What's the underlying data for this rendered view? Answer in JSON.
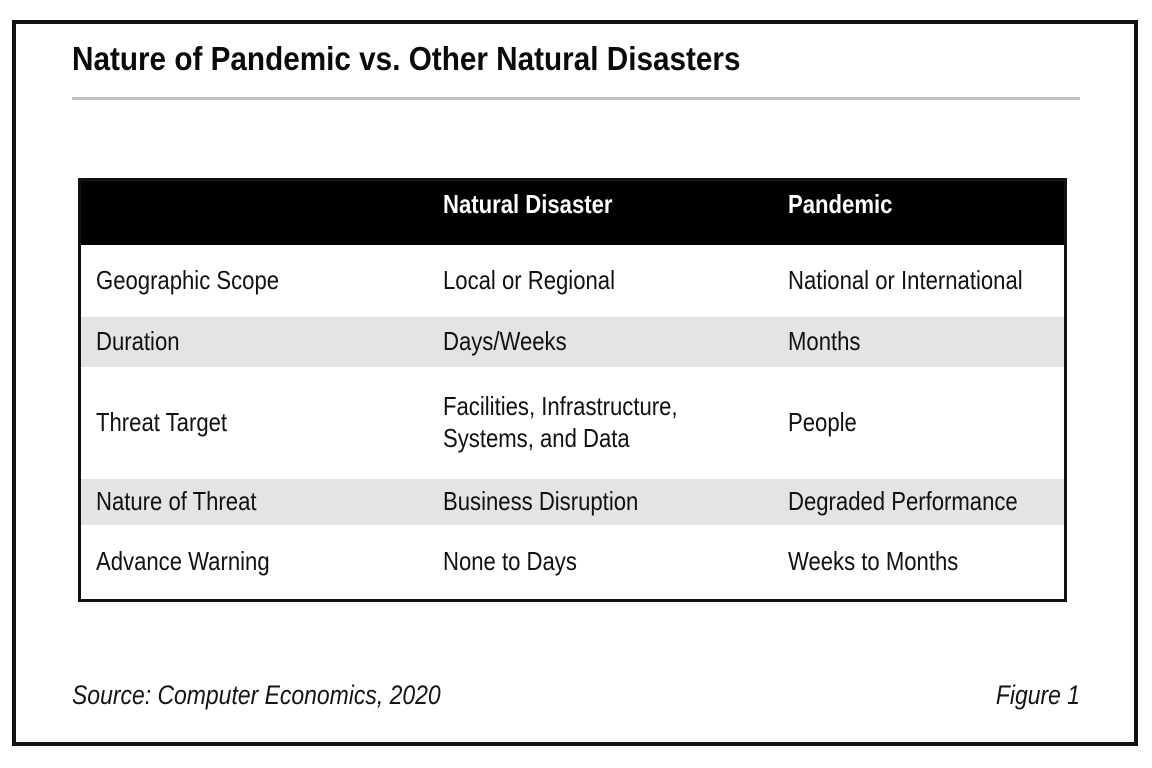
{
  "figure": {
    "title": "Nature of Pandemic vs. Other Natural Disasters",
    "source": "Source: Computer Economics, 2020",
    "figure_label": "Figure 1"
  },
  "table": {
    "columns": [
      "",
      "Natural Disaster",
      "Pandemic"
    ],
    "rows": [
      {
        "label": "Geographic Scope",
        "natural_disaster": "Local or Regional",
        "pandemic": "National or International"
      },
      {
        "label": "Duration",
        "natural_disaster": "Days/Weeks",
        "pandemic": "Months"
      },
      {
        "label": "Threat Target",
        "natural_disaster": "Facilities, Infrastructure,\nSystems, and Data",
        "pandemic": "People"
      },
      {
        "label": "Nature of Threat",
        "natural_disaster": "Business Disruption",
        "pandemic": "Degraded Performance"
      },
      {
        "label": "Advance Warning",
        "natural_disaster": "None to Days",
        "pandemic": "Weeks to Months"
      }
    ]
  },
  "colors": {
    "table_header_bg": "#000000",
    "row_stripe": "#e4e4e4",
    "frame_border": "#111111",
    "title_rule": "#c2c2c2"
  }
}
